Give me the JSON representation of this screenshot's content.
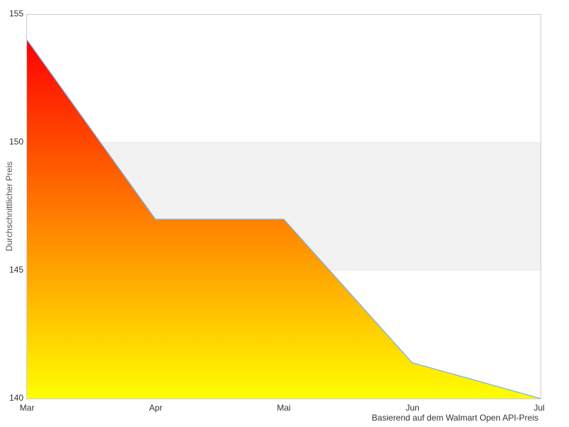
{
  "chart_data": {
    "type": "area",
    "x": [
      "Mar",
      "Apr",
      "Mai",
      "Jun",
      "Jul"
    ],
    "series": [
      {
        "name": "Durchschnittlicher Preis",
        "values": [
          154,
          147,
          147,
          141.4,
          140
        ]
      }
    ],
    "title": "",
    "xlabel": "",
    "ylabel": "Durchschnittlicher Preis",
    "caption": "Basierend auf dem Walmart Open API-Preis",
    "ylim": [
      140,
      155
    ],
    "yticks_top_to_bottom": [
      155,
      150,
      145,
      140
    ],
    "grid": false,
    "legend": "none",
    "plot_band": {
      "from": 145,
      "to": 150,
      "color": "#f2f2f2",
      "edge_color": "#e6e6e6"
    },
    "colors": {
      "line": "#7cb5ec",
      "fill_gradient_top": "#ff0000",
      "fill_gradient_bottom": "#ffff00",
      "plot_border": "#cccccc",
      "tick_label": "#333333",
      "axis_title": "#555555",
      "caption": "#333333",
      "background": "#ffffff"
    }
  }
}
